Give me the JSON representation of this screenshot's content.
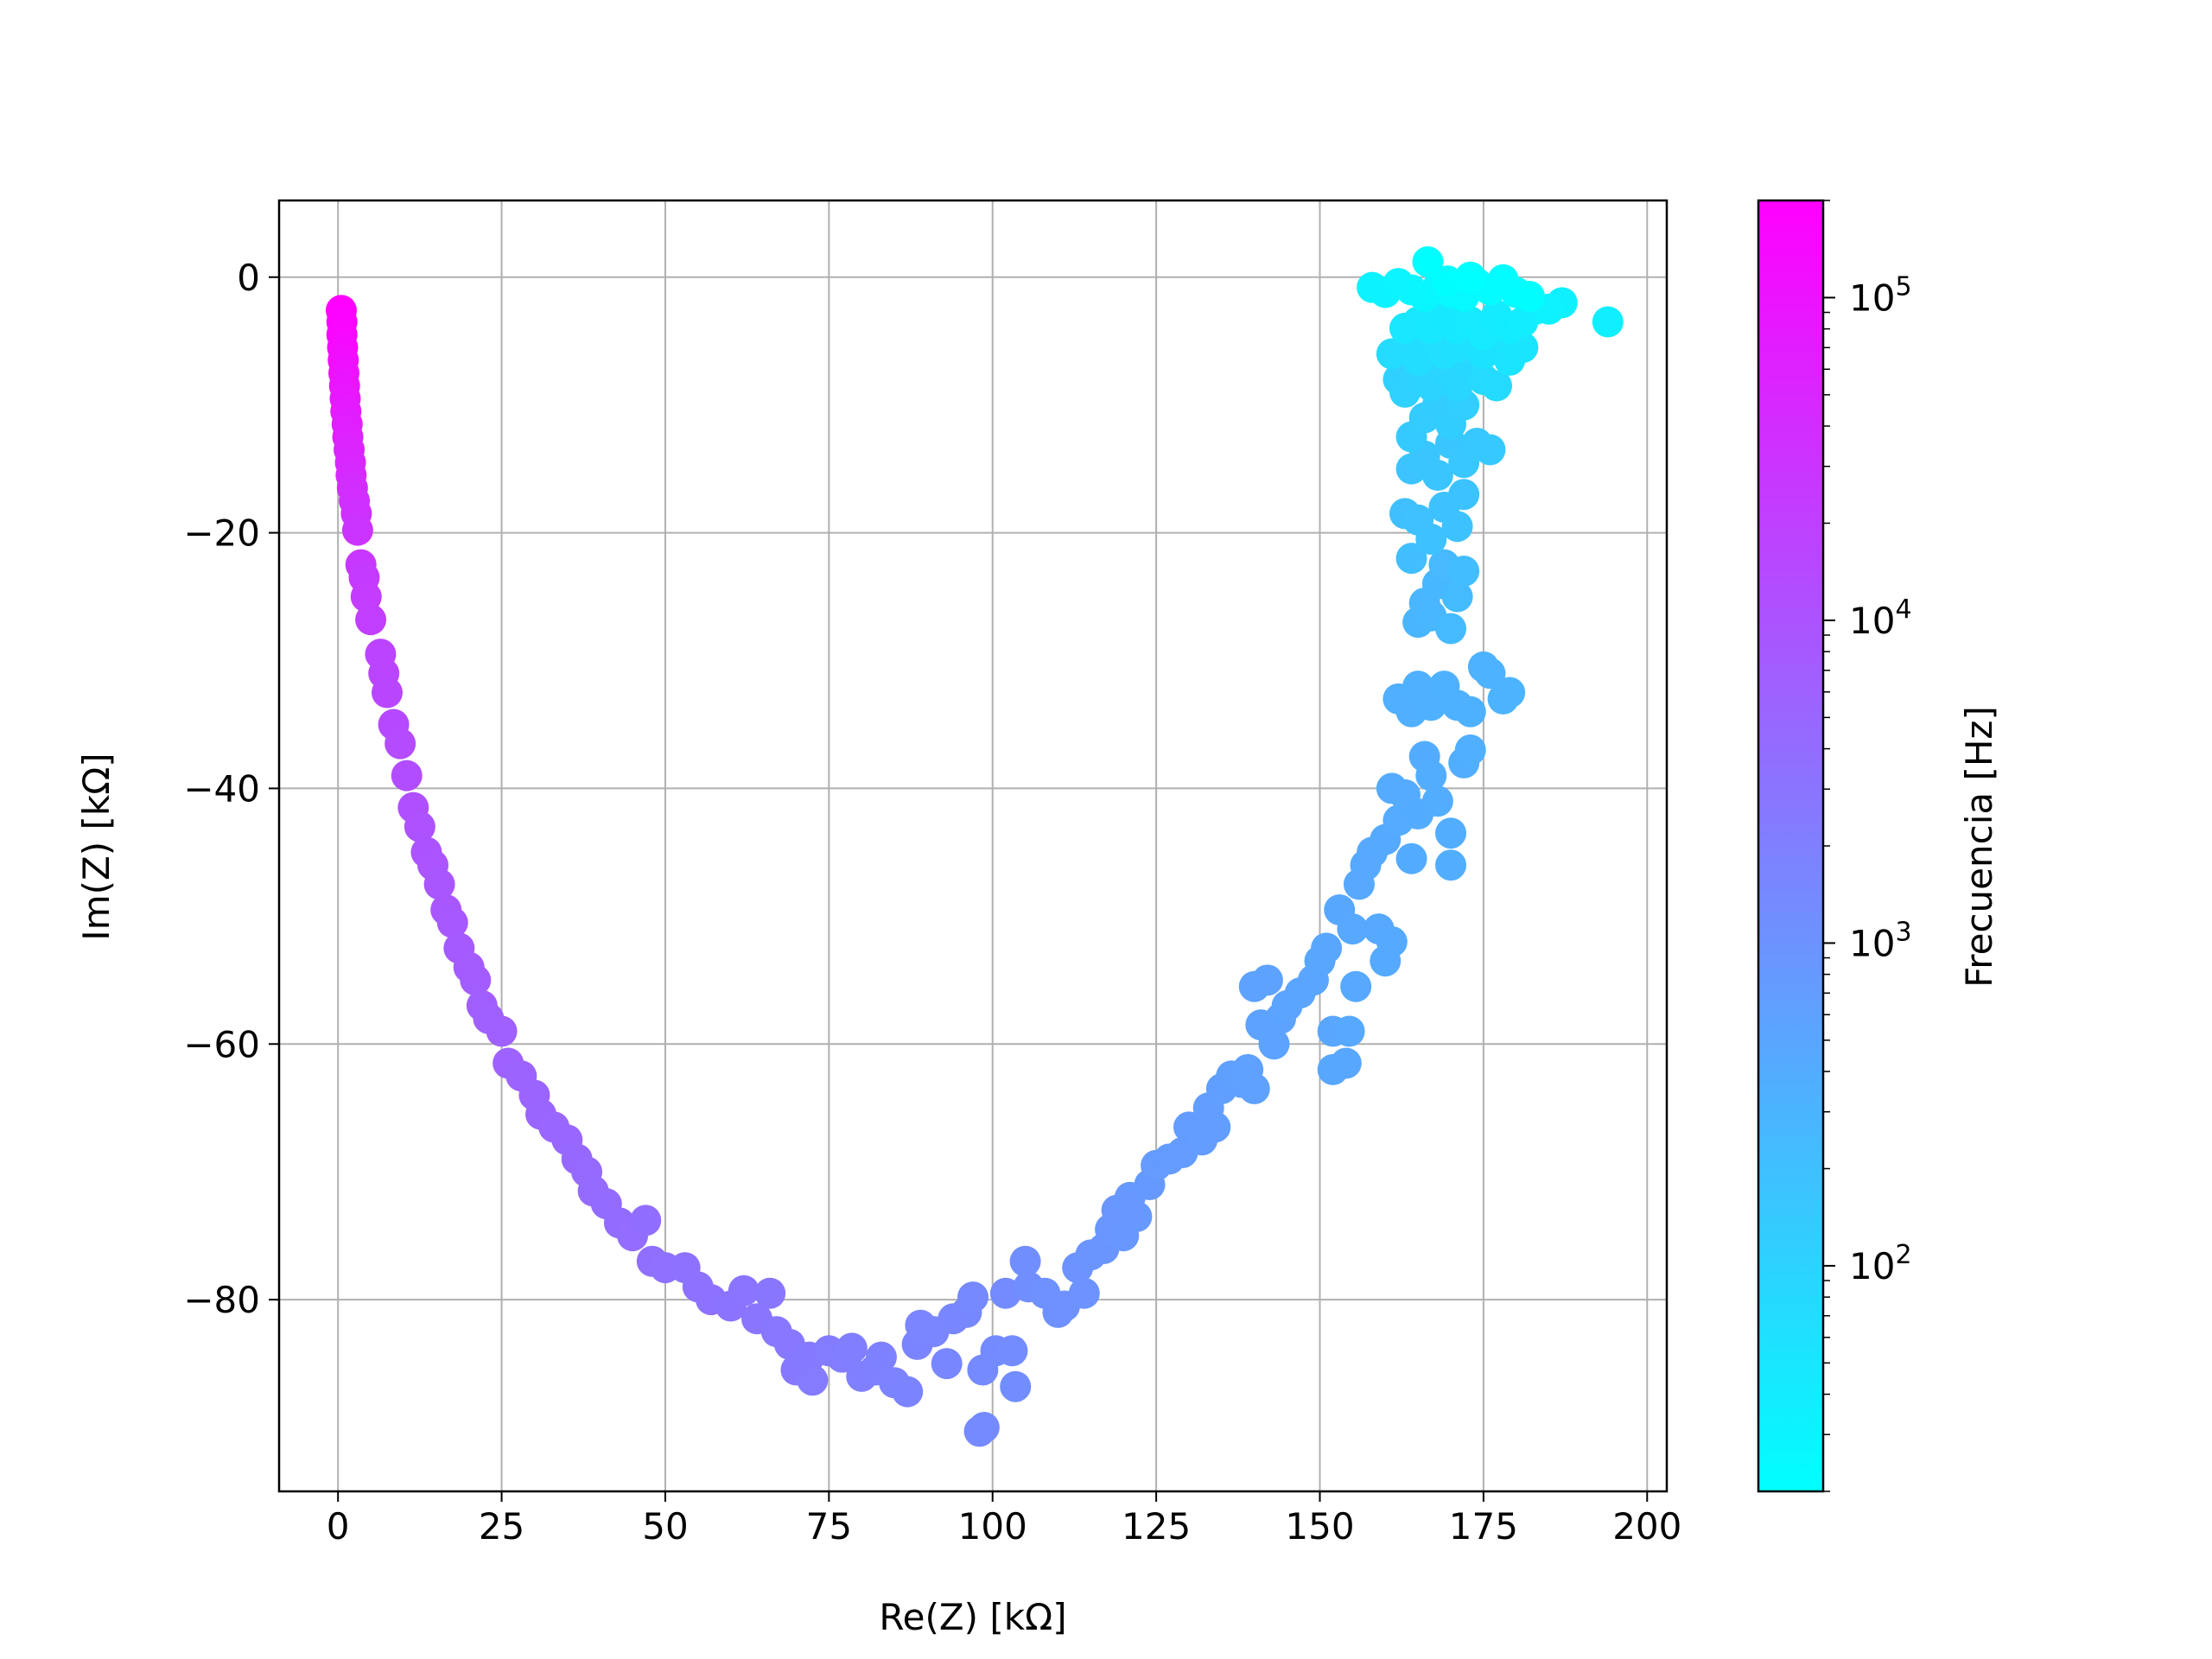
{
  "chart_data": {
    "type": "scatter",
    "title": "",
    "xlabel": "Re(Z) [kΩ]",
    "ylabel": "Im(Z) [kΩ]",
    "xlim": [
      -9,
      203
    ],
    "ylim": [
      -95,
      6
    ],
    "xticks": [
      0,
      25,
      50,
      75,
      100,
      125,
      150,
      175,
      200
    ],
    "xtick_labels": [
      "0",
      "25",
      "50",
      "75",
      "100",
      "125",
      "150",
      "175",
      "200"
    ],
    "yticks": [
      0,
      -20,
      -40,
      -60,
      -80
    ],
    "ytick_labels": [
      "0",
      "−20",
      "−40",
      "−60",
      "−80"
    ],
    "grid": true,
    "colormap": "cool",
    "colors": {
      "low": "#00ffff",
      "high": "#ff00ff"
    },
    "colorbar": {
      "label": "Frecuencia [Hz]",
      "scale": "log",
      "range_hz": [
        20,
        200000
      ],
      "ticks": [
        100,
        1000,
        10000,
        100000
      ],
      "tick_labels": [
        {
          "base": "10",
          "exp": "2"
        },
        {
          "base": "10",
          "exp": "3"
        },
        {
          "base": "10",
          "exp": "4"
        },
        {
          "base": "10",
          "exp": "5"
        }
      ]
    },
    "points": [
      {
        "x": 0.5,
        "y": -2.6,
        "f": 200000
      },
      {
        "x": 0.6,
        "y": -3.5,
        "f": 180000
      },
      {
        "x": 0.6,
        "y": -4.5,
        "f": 160000
      },
      {
        "x": 0.7,
        "y": -5.5,
        "f": 140000
      },
      {
        "x": 0.8,
        "y": -6.5,
        "f": 125000
      },
      {
        "x": 0.9,
        "y": -7.5,
        "f": 110000
      },
      {
        "x": 1.0,
        "y": -8.5,
        "f": 98000
      },
      {
        "x": 1.1,
        "y": -9.5,
        "f": 88000
      },
      {
        "x": 1.2,
        "y": -10.5,
        "f": 78000
      },
      {
        "x": 1.4,
        "y": -11.5,
        "f": 70000
      },
      {
        "x": 1.5,
        "y": -12.5,
        "f": 62000
      },
      {
        "x": 1.7,
        "y": -13.5,
        "f": 55000
      },
      {
        "x": 1.9,
        "y": -14.5,
        "f": 50000
      },
      {
        "x": 2.0,
        "y": -15.5,
        "f": 45000
      },
      {
        "x": 2.2,
        "y": -16.5,
        "f": 41000
      },
      {
        "x": 2.5,
        "y": -17.5,
        "f": 37000
      },
      {
        "x": 2.8,
        "y": -18.5,
        "f": 34000
      },
      {
        "x": 3.0,
        "y": -19.8,
        "f": 31000
      },
      {
        "x": 3.5,
        "y": -22.5,
        "f": 27000
      },
      {
        "x": 4.0,
        "y": -23.5,
        "f": 25000
      },
      {
        "x": 4.3,
        "y": -25.0,
        "f": 23000
      },
      {
        "x": 5.0,
        "y": -26.8,
        "f": 21000
      },
      {
        "x": 6.5,
        "y": -29.5,
        "f": 18000
      },
      {
        "x": 7.0,
        "y": -31.0,
        "f": 17000
      },
      {
        "x": 7.5,
        "y": -32.5,
        "f": 16000
      },
      {
        "x": 8.5,
        "y": -35.0,
        "f": 14500
      },
      {
        "x": 9.5,
        "y": -36.5,
        "f": 13500
      },
      {
        "x": 10.5,
        "y": -39.0,
        "f": 12500
      },
      {
        "x": 11.5,
        "y": -41.5,
        "f": 11500
      },
      {
        "x": 12.5,
        "y": -43.0,
        "f": 10800
      },
      {
        "x": 13.5,
        "y": -45.0,
        "f": 10000
      },
      {
        "x": 14.5,
        "y": -46.0,
        "f": 9500
      },
      {
        "x": 15.5,
        "y": -47.5,
        "f": 9000
      },
      {
        "x": 16.5,
        "y": -49.5,
        "f": 8600
      },
      {
        "x": 17.5,
        "y": -50.5,
        "f": 8200
      },
      {
        "x": 18.5,
        "y": -52.5,
        "f": 7800
      },
      {
        "x": 20.0,
        "y": -54.0,
        "f": 7400
      },
      {
        "x": 21.0,
        "y": -55.0,
        "f": 7100
      },
      {
        "x": 22.0,
        "y": -57.0,
        "f": 6800
      },
      {
        "x": 23.0,
        "y": -58.0,
        "f": 6500
      },
      {
        "x": 25.0,
        "y": -59.0,
        "f": 6200
      },
      {
        "x": 26.0,
        "y": -61.5,
        "f": 5900
      },
      {
        "x": 28.0,
        "y": -62.5,
        "f": 5600
      },
      {
        "x": 30.0,
        "y": -64.0,
        "f": 5400
      },
      {
        "x": 31.0,
        "y": -65.5,
        "f": 5200
      },
      {
        "x": 33.0,
        "y": -66.5,
        "f": 5000
      },
      {
        "x": 35.0,
        "y": -67.5,
        "f": 4800
      },
      {
        "x": 36.5,
        "y": -69.0,
        "f": 4600
      },
      {
        "x": 38.0,
        "y": -70.0,
        "f": 4450
      },
      {
        "x": 39.0,
        "y": -71.5,
        "f": 4300
      },
      {
        "x": 41.0,
        "y": -72.5,
        "f": 4150
      },
      {
        "x": 43.0,
        "y": -74.0,
        "f": 4000
      },
      {
        "x": 45.0,
        "y": -75.0,
        "f": 3850
      },
      {
        "x": 47.0,
        "y": -73.8,
        "f": 3750
      },
      {
        "x": 48.0,
        "y": -77.0,
        "f": 3650
      },
      {
        "x": 50.0,
        "y": -77.5,
        "f": 3500
      },
      {
        "x": 53.0,
        "y": -77.5,
        "f": 3400
      },
      {
        "x": 55.0,
        "y": -79.0,
        "f": 3300
      },
      {
        "x": 57.0,
        "y": -80.0,
        "f": 3200
      },
      {
        "x": 60.0,
        "y": -80.5,
        "f": 3100
      },
      {
        "x": 62.0,
        "y": -79.3,
        "f": 3000
      },
      {
        "x": 64.0,
        "y": -81.5,
        "f": 2900
      },
      {
        "x": 66.0,
        "y": -79.5,
        "f": 2800
      },
      {
        "x": 67.0,
        "y": -82.5,
        "f": 2700
      },
      {
        "x": 69.0,
        "y": -83.5,
        "f": 2600
      },
      {
        "x": 70.0,
        "y": -85.5,
        "f": 2500
      },
      {
        "x": 72.0,
        "y": -84.5,
        "f": 2400
      },
      {
        "x": 72.5,
        "y": -86.3,
        "f": 2350
      },
      {
        "x": 75.0,
        "y": -84.0,
        "f": 2250
      },
      {
        "x": 77.0,
        "y": -84.5,
        "f": 2150
      },
      {
        "x": 78.5,
        "y": -83.8,
        "f": 2100
      },
      {
        "x": 80.0,
        "y": -86.0,
        "f": 2000
      },
      {
        "x": 82.0,
        "y": -85.5,
        "f": 1950
      },
      {
        "x": 83.0,
        "y": -84.5,
        "f": 1900
      },
      {
        "x": 85.0,
        "y": -86.5,
        "f": 1800
      },
      {
        "x": 87.0,
        "y": -87.2,
        "f": 1750
      },
      {
        "x": 88.5,
        "y": -83.5,
        "f": 1700
      },
      {
        "x": 89.0,
        "y": -82.0,
        "f": 1650
      },
      {
        "x": 91.0,
        "y": -82.5,
        "f": 1600
      },
      {
        "x": 93.0,
        "y": -85.0,
        "f": 1550
      },
      {
        "x": 94.0,
        "y": -81.5,
        "f": 1500
      },
      {
        "x": 96.0,
        "y": -81.0,
        "f": 1450
      },
      {
        "x": 97.0,
        "y": -79.8,
        "f": 1420
      },
      {
        "x": 98.0,
        "y": -90.3,
        "f": 1400
      },
      {
        "x": 98.5,
        "y": -85.5,
        "f": 1380
      },
      {
        "x": 98.7,
        "y": -90.0,
        "f": 1370
      },
      {
        "x": 100.5,
        "y": -84.0,
        "f": 1340
      },
      {
        "x": 102.0,
        "y": -79.5,
        "f": 1300
      },
      {
        "x": 103.0,
        "y": -84.0,
        "f": 1270
      },
      {
        "x": 103.5,
        "y": -86.8,
        "f": 1250
      },
      {
        "x": 105.0,
        "y": -77.0,
        "f": 1200
      },
      {
        "x": 105.5,
        "y": -79.0,
        "f": 1180
      },
      {
        "x": 108.0,
        "y": -79.5,
        "f": 1120
      },
      {
        "x": 110.0,
        "y": -81.0,
        "f": 1080
      },
      {
        "x": 111.0,
        "y": -80.5,
        "f": 1050
      },
      {
        "x": 113.0,
        "y": -77.5,
        "f": 1000
      },
      {
        "x": 114.0,
        "y": -79.5,
        "f": 980
      },
      {
        "x": 115.0,
        "y": -76.5,
        "f": 950
      },
      {
        "x": 117.0,
        "y": -76.0,
        "f": 920
      },
      {
        "x": 118.0,
        "y": -74.5,
        "f": 900
      },
      {
        "x": 119.0,
        "y": -73.0,
        "f": 880
      },
      {
        "x": 120.0,
        "y": -75.0,
        "f": 860
      },
      {
        "x": 121.0,
        "y": -72.0,
        "f": 840
      },
      {
        "x": 122.0,
        "y": -73.5,
        "f": 820
      },
      {
        "x": 124.0,
        "y": -71.0,
        "f": 790
      },
      {
        "x": 125.0,
        "y": -69.5,
        "f": 770
      },
      {
        "x": 127.0,
        "y": -69.0,
        "f": 750
      },
      {
        "x": 129.0,
        "y": -68.5,
        "f": 730
      },
      {
        "x": 130.0,
        "y": -66.5,
        "f": 710
      },
      {
        "x": 132.0,
        "y": -67.5,
        "f": 690
      },
      {
        "x": 133.0,
        "y": -65.0,
        "f": 670
      },
      {
        "x": 134.0,
        "y": -66.5,
        "f": 660
      },
      {
        "x": 135.0,
        "y": -63.5,
        "f": 640
      },
      {
        "x": 136.5,
        "y": -62.5,
        "f": 625
      },
      {
        "x": 138.0,
        "y": -63.0,
        "f": 610
      },
      {
        "x": 139.0,
        "y": -62.0,
        "f": 600
      },
      {
        "x": 140.0,
        "y": -63.5,
        "f": 590
      },
      {
        "x": 140.0,
        "y": -55.5,
        "f": 585
      },
      {
        "x": 141.0,
        "y": -58.5,
        "f": 575
      },
      {
        "x": 142.0,
        "y": -55.0,
        "f": 565
      },
      {
        "x": 143.0,
        "y": -60.0,
        "f": 555
      },
      {
        "x": 144.0,
        "y": -58.0,
        "f": 545
      },
      {
        "x": 145.0,
        "y": -57.0,
        "f": 535
      },
      {
        "x": 147.0,
        "y": -56.0,
        "f": 520
      },
      {
        "x": 149.0,
        "y": -55.0,
        "f": 510
      },
      {
        "x": 150.0,
        "y": -53.5,
        "f": 500
      },
      {
        "x": 151.0,
        "y": -52.5,
        "f": 495
      },
      {
        "x": 152.0,
        "y": -59.0,
        "f": 490
      },
      {
        "x": 152.0,
        "y": -62.0,
        "f": 485
      },
      {
        "x": 153.0,
        "y": -49.5,
        "f": 480
      },
      {
        "x": 154.0,
        "y": -61.5,
        "f": 475
      },
      {
        "x": 154.5,
        "y": -59.0,
        "f": 470
      },
      {
        "x": 155.0,
        "y": -51.0,
        "f": 465
      },
      {
        "x": 155.5,
        "y": -55.5,
        "f": 460
      },
      {
        "x": 156.0,
        "y": -47.5,
        "f": 455
      },
      {
        "x": 157.0,
        "y": -46.0,
        "f": 450
      },
      {
        "x": 158.0,
        "y": -45.0,
        "f": 445
      },
      {
        "x": 159.0,
        "y": -51.0,
        "f": 440
      },
      {
        "x": 160.0,
        "y": -53.5,
        "f": 435
      },
      {
        "x": 161.0,
        "y": -52.0,
        "f": 430
      },
      {
        "x": 160.0,
        "y": -44.0,
        "f": 425
      },
      {
        "x": 161.0,
        "y": -40.0,
        "f": 420
      },
      {
        "x": 162.0,
        "y": -42.5,
        "f": 415
      },
      {
        "x": 163.0,
        "y": -40.5,
        "f": 410
      },
      {
        "x": 164.0,
        "y": -45.5,
        "f": 405
      },
      {
        "x": 165.0,
        "y": -42.0,
        "f": 400
      },
      {
        "x": 166.0,
        "y": -37.5,
        "f": 395
      },
      {
        "x": 167.0,
        "y": -39.0,
        "f": 390
      },
      {
        "x": 168.0,
        "y": -41.0,
        "f": 385
      },
      {
        "x": 170.0,
        "y": -43.5,
        "f": 380
      },
      {
        "x": 170.0,
        "y": -46.0,
        "f": 375
      },
      {
        "x": 172.0,
        "y": -38.0,
        "f": 370
      },
      {
        "x": 173.0,
        "y": -37.0,
        "f": 365
      },
      {
        "x": 162.0,
        "y": -33.0,
        "f": 360
      },
      {
        "x": 164.0,
        "y": -34.0,
        "f": 355
      },
      {
        "x": 165.0,
        "y": -32.0,
        "f": 350
      },
      {
        "x": 167.0,
        "y": -33.5,
        "f": 345
      },
      {
        "x": 169.0,
        "y": -32.0,
        "f": 340
      },
      {
        "x": 171.0,
        "y": -33.5,
        "f": 335
      },
      {
        "x": 173.0,
        "y": -34.0,
        "f": 330
      },
      {
        "x": 175.0,
        "y": -30.5,
        "f": 325
      },
      {
        "x": 176.0,
        "y": -31.0,
        "f": 320
      },
      {
        "x": 178.0,
        "y": -33.0,
        "f": 315
      },
      {
        "x": 179.0,
        "y": -32.5,
        "f": 310
      },
      {
        "x": 165.0,
        "y": -27.0,
        "f": 290
      },
      {
        "x": 166.0,
        "y": -25.5,
        "f": 280
      },
      {
        "x": 167.0,
        "y": -26.5,
        "f": 270
      },
      {
        "x": 168.0,
        "y": -24.0,
        "f": 260
      },
      {
        "x": 169.0,
        "y": -22.5,
        "f": 250
      },
      {
        "x": 170.0,
        "y": -27.5,
        "f": 240
      },
      {
        "x": 171.0,
        "y": -25.0,
        "f": 230
      },
      {
        "x": 172.0,
        "y": -23.0,
        "f": 220
      },
      {
        "x": 164.0,
        "y": -22.0,
        "f": 210
      },
      {
        "x": 163.0,
        "y": -18.5,
        "f": 200
      },
      {
        "x": 165.0,
        "y": -19.0,
        "f": 195
      },
      {
        "x": 167.0,
        "y": -20.5,
        "f": 190
      },
      {
        "x": 169.0,
        "y": -18.0,
        "f": 185
      },
      {
        "x": 171.0,
        "y": -19.5,
        "f": 180
      },
      {
        "x": 172.0,
        "y": -17.0,
        "f": 175
      },
      {
        "x": 164.0,
        "y": -15.0,
        "f": 170
      },
      {
        "x": 166.0,
        "y": -14.0,
        "f": 165
      },
      {
        "x": 168.0,
        "y": -15.5,
        "f": 160
      },
      {
        "x": 170.0,
        "y": -13.0,
        "f": 155
      },
      {
        "x": 172.0,
        "y": -14.5,
        "f": 150
      },
      {
        "x": 174.0,
        "y": -13.0,
        "f": 145
      },
      {
        "x": 176.0,
        "y": -13.5,
        "f": 140
      },
      {
        "x": 164.0,
        "y": -12.5,
        "f": 135
      },
      {
        "x": 166.0,
        "y": -11.0,
        "f": 130
      },
      {
        "x": 168.0,
        "y": -10.0,
        "f": 125
      },
      {
        "x": 170.0,
        "y": -11.5,
        "f": 120
      },
      {
        "x": 172.0,
        "y": -10.0,
        "f": 115
      },
      {
        "x": 162.0,
        "y": -8.0,
        "f": 110
      },
      {
        "x": 163.0,
        "y": -9.0,
        "f": 105
      },
      {
        "x": 165.0,
        "y": -7.5,
        "f": 100
      },
      {
        "x": 167.0,
        "y": -8.5,
        "f": 96
      },
      {
        "x": 169.0,
        "y": -7.0,
        "f": 92
      },
      {
        "x": 171.0,
        "y": -8.5,
        "f": 88
      },
      {
        "x": 173.0,
        "y": -7.0,
        "f": 84
      },
      {
        "x": 175.0,
        "y": -8.0,
        "f": 80
      },
      {
        "x": 177.0,
        "y": -8.5,
        "f": 76
      },
      {
        "x": 161.0,
        "y": -6.0,
        "f": 72
      },
      {
        "x": 163.0,
        "y": -5.5,
        "f": 70
      },
      {
        "x": 165.0,
        "y": -6.5,
        "f": 68
      },
      {
        "x": 167.0,
        "y": -5.0,
        "f": 66
      },
      {
        "x": 169.0,
        "y": -6.0,
        "f": 64
      },
      {
        "x": 171.0,
        "y": -5.5,
        "f": 62
      },
      {
        "x": 173.0,
        "y": -5.0,
        "f": 60
      },
      {
        "x": 175.0,
        "y": -6.0,
        "f": 58
      },
      {
        "x": 177.0,
        "y": -5.5,
        "f": 56
      },
      {
        "x": 179.0,
        "y": -6.5,
        "f": 54
      },
      {
        "x": 181.0,
        "y": -5.5,
        "f": 52
      },
      {
        "x": 163.0,
        "y": -4.0,
        "f": 50
      },
      {
        "x": 165.0,
        "y": -3.5,
        "f": 48
      },
      {
        "x": 167.0,
        "y": -4.0,
        "f": 46
      },
      {
        "x": 169.0,
        "y": -3.0,
        "f": 45
      },
      {
        "x": 171.0,
        "y": -4.0,
        "f": 44
      },
      {
        "x": 173.0,
        "y": -3.5,
        "f": 43
      },
      {
        "x": 175.0,
        "y": -4.5,
        "f": 42
      },
      {
        "x": 177.0,
        "y": -3.0,
        "f": 41
      },
      {
        "x": 179.0,
        "y": -4.0,
        "f": 40
      },
      {
        "x": 181.0,
        "y": -3.5,
        "f": 39
      },
      {
        "x": 183.0,
        "y": -2.5,
        "f": 37
      },
      {
        "x": 194.0,
        "y": -3.5,
        "f": 36
      },
      {
        "x": 187.0,
        "y": -2.0,
        "f": 34
      },
      {
        "x": 185.0,
        "y": -2.5,
        "f": 33
      },
      {
        "x": 158.0,
        "y": -0.8,
        "f": 32
      },
      {
        "x": 160.0,
        "y": -1.2,
        "f": 31
      },
      {
        "x": 162.0,
        "y": -0.5,
        "f": 30
      },
      {
        "x": 164.0,
        "y": -1.0,
        "f": 29
      },
      {
        "x": 166.0,
        "y": -1.5,
        "f": 28
      },
      {
        "x": 168.0,
        "y": -0.8,
        "f": 27
      },
      {
        "x": 170.0,
        "y": -1.2,
        "f": 26
      },
      {
        "x": 172.0,
        "y": -1.5,
        "f": 25
      },
      {
        "x": 174.0,
        "y": -0.5,
        "f": 24
      },
      {
        "x": 176.0,
        "y": -1.0,
        "f": 23
      },
      {
        "x": 178.0,
        "y": -0.2,
        "f": 22.5
      },
      {
        "x": 180.0,
        "y": -1.2,
        "f": 22
      },
      {
        "x": 182.0,
        "y": -1.5,
        "f": 21.5
      },
      {
        "x": 166.5,
        "y": 1.2,
        "f": 21
      },
      {
        "x": 169.5,
        "y": -0.3,
        "f": 20.5
      },
      {
        "x": 173.0,
        "y": 0.0,
        "f": 20
      }
    ]
  }
}
